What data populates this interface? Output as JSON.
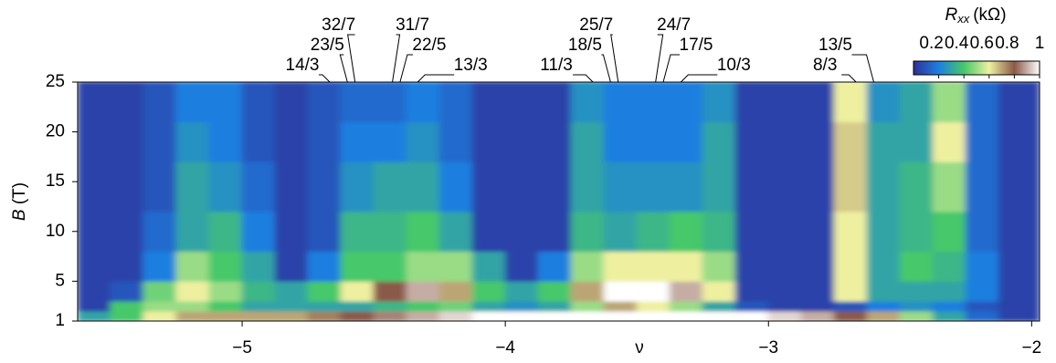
{
  "chart_data": {
    "type": "heatmap",
    "xlabel": "ν",
    "ylabel": {
      "symbol": "B",
      "unit": "(T)"
    },
    "xlim": [
      -5.625,
      -1.97
    ],
    "ylim": [
      1,
      25
    ],
    "xticks": [
      {
        "value": -5,
        "label": "−5"
      },
      {
        "value": -4,
        "label": "−4"
      },
      {
        "value": -3,
        "label": "−3"
      },
      {
        "value": -2,
        "label": "−2"
      }
    ],
    "yticks": [
      1,
      5,
      10,
      15,
      20,
      25
    ],
    "x_bins": [
      -5.625,
      -5.5,
      -5.375,
      -5.25,
      -5.125,
      -5,
      -4.875,
      -4.75,
      -4.625,
      -4.5,
      -4.375,
      -4.25,
      -4.125,
      -4,
      -3.875,
      -3.75,
      -3.625,
      -3.5,
      -3.375,
      -3.25,
      -3.125,
      -3,
      -2.875,
      -2.75,
      -2.625,
      -2.5,
      -2.375,
      -2.25,
      -2.125,
      -2,
      -1.97
    ],
    "y_bins": [
      1,
      2,
      3,
      5,
      8,
      12,
      17,
      21,
      25
    ],
    "z": [
      [
        0.3,
        0.4,
        0.6,
        0.7,
        0.7,
        0.7,
        0.7,
        0.75,
        0.8,
        0.85,
        0.9,
        0.95,
        1,
        1,
        1,
        1,
        1,
        1,
        1,
        1,
        1,
        0.95,
        0.9,
        0.8,
        0.7,
        0.5,
        0.3,
        0.15,
        0.05,
        0.05
      ],
      [
        0.05,
        0.4,
        0.5,
        0.5,
        0.4,
        0.3,
        0.3,
        0.3,
        0.3,
        0.35,
        0.4,
        0.45,
        0.3,
        0.25,
        0.3,
        0.5,
        0.7,
        0.6,
        0.5,
        0.3,
        0.1,
        0.05,
        0.05,
        0.1,
        0.2,
        0.25,
        0.2,
        0.1,
        0.05,
        0.05
      ],
      [
        0.05,
        0.1,
        0.45,
        0.6,
        0.5,
        0.35,
        0.3,
        0.4,
        0.6,
        0.8,
        0.9,
        0.7,
        0.4,
        0.3,
        0.4,
        0.7,
        1,
        1,
        0.9,
        0.6,
        0.05,
        0.05,
        0.05,
        0.6,
        0.3,
        0.3,
        0.3,
        0.2,
        0.05,
        0.05
      ],
      [
        0.05,
        0.05,
        0.2,
        0.5,
        0.4,
        0.3,
        0.05,
        0.2,
        0.4,
        0.4,
        0.5,
        0.5,
        0.3,
        0.05,
        0.2,
        0.5,
        0.6,
        0.6,
        0.6,
        0.5,
        0.05,
        0.05,
        0.05,
        0.6,
        0.3,
        0.4,
        0.35,
        0.2,
        0.05,
        0.05
      ],
      [
        0.05,
        0.05,
        0.15,
        0.3,
        0.35,
        0.2,
        0.05,
        0.1,
        0.35,
        0.35,
        0.4,
        0.3,
        0.05,
        0.05,
        0.05,
        0.35,
        0.3,
        0.35,
        0.4,
        0.35,
        0.05,
        0.05,
        0.05,
        0.6,
        0.3,
        0.35,
        0.4,
        0.15,
        0.05,
        0.05
      ],
      [
        0.05,
        0.05,
        0.1,
        0.3,
        0.25,
        0.15,
        0.05,
        0.1,
        0.25,
        0.3,
        0.3,
        0.2,
        0.05,
        0.05,
        0.05,
        0.3,
        0.25,
        0.25,
        0.25,
        0.3,
        0.05,
        0.05,
        0.05,
        0.65,
        0.3,
        0.35,
        0.5,
        0.15,
        0.05,
        0.05
      ],
      [
        0.05,
        0.05,
        0.1,
        0.25,
        0.2,
        0.1,
        0.05,
        0.1,
        0.2,
        0.2,
        0.25,
        0.15,
        0.05,
        0.05,
        0.05,
        0.3,
        0.2,
        0.2,
        0.2,
        0.3,
        0.05,
        0.05,
        0.05,
        0.65,
        0.3,
        0.3,
        0.6,
        0.15,
        0.05,
        0.05
      ],
      [
        0.05,
        0.05,
        0.1,
        0.2,
        0.2,
        0.1,
        0.05,
        0.1,
        0.15,
        0.15,
        0.2,
        0.15,
        0.05,
        0.05,
        0.05,
        0.25,
        0.2,
        0.2,
        0.2,
        0.25,
        0.05,
        0.05,
        0.05,
        0.6,
        0.25,
        0.3,
        0.5,
        0.15,
        0.05,
        0.05
      ]
    ],
    "colorbar": {
      "label": {
        "symbol": "R",
        "subscript": "xx",
        "unit": "(kΩ)"
      },
      "lim": [
        0,
        1
      ],
      "ticks": [
        0.2,
        0.4,
        0.6,
        0.8,
        1
      ],
      "colors": [
        "#2f2f96",
        "#1e7fe0",
        "#46c86a",
        "#eef0a0",
        "#8a5a48",
        "#ffffff"
      ]
    },
    "annotations": [
      {
        "label": "14/3",
        "x": -4.667
      },
      {
        "label": "23/5",
        "x": -4.6
      },
      {
        "label": "32/7",
        "x": -4.571
      },
      {
        "label": "31/7",
        "x": -4.429
      },
      {
        "label": "22/5",
        "x": -4.4
      },
      {
        "label": "13/3",
        "x": -4.333
      },
      {
        "label": "11/3",
        "x": -3.667
      },
      {
        "label": "18/5",
        "x": -3.6
      },
      {
        "label": "25/7",
        "x": -3.571
      },
      {
        "label": "24/7",
        "x": -3.429
      },
      {
        "label": "17/5",
        "x": -3.4
      },
      {
        "label": "10/3",
        "x": -3.333
      },
      {
        "label": "8/3",
        "x": -2.667
      },
      {
        "label": "13/5",
        "x": -2.6
      }
    ]
  }
}
